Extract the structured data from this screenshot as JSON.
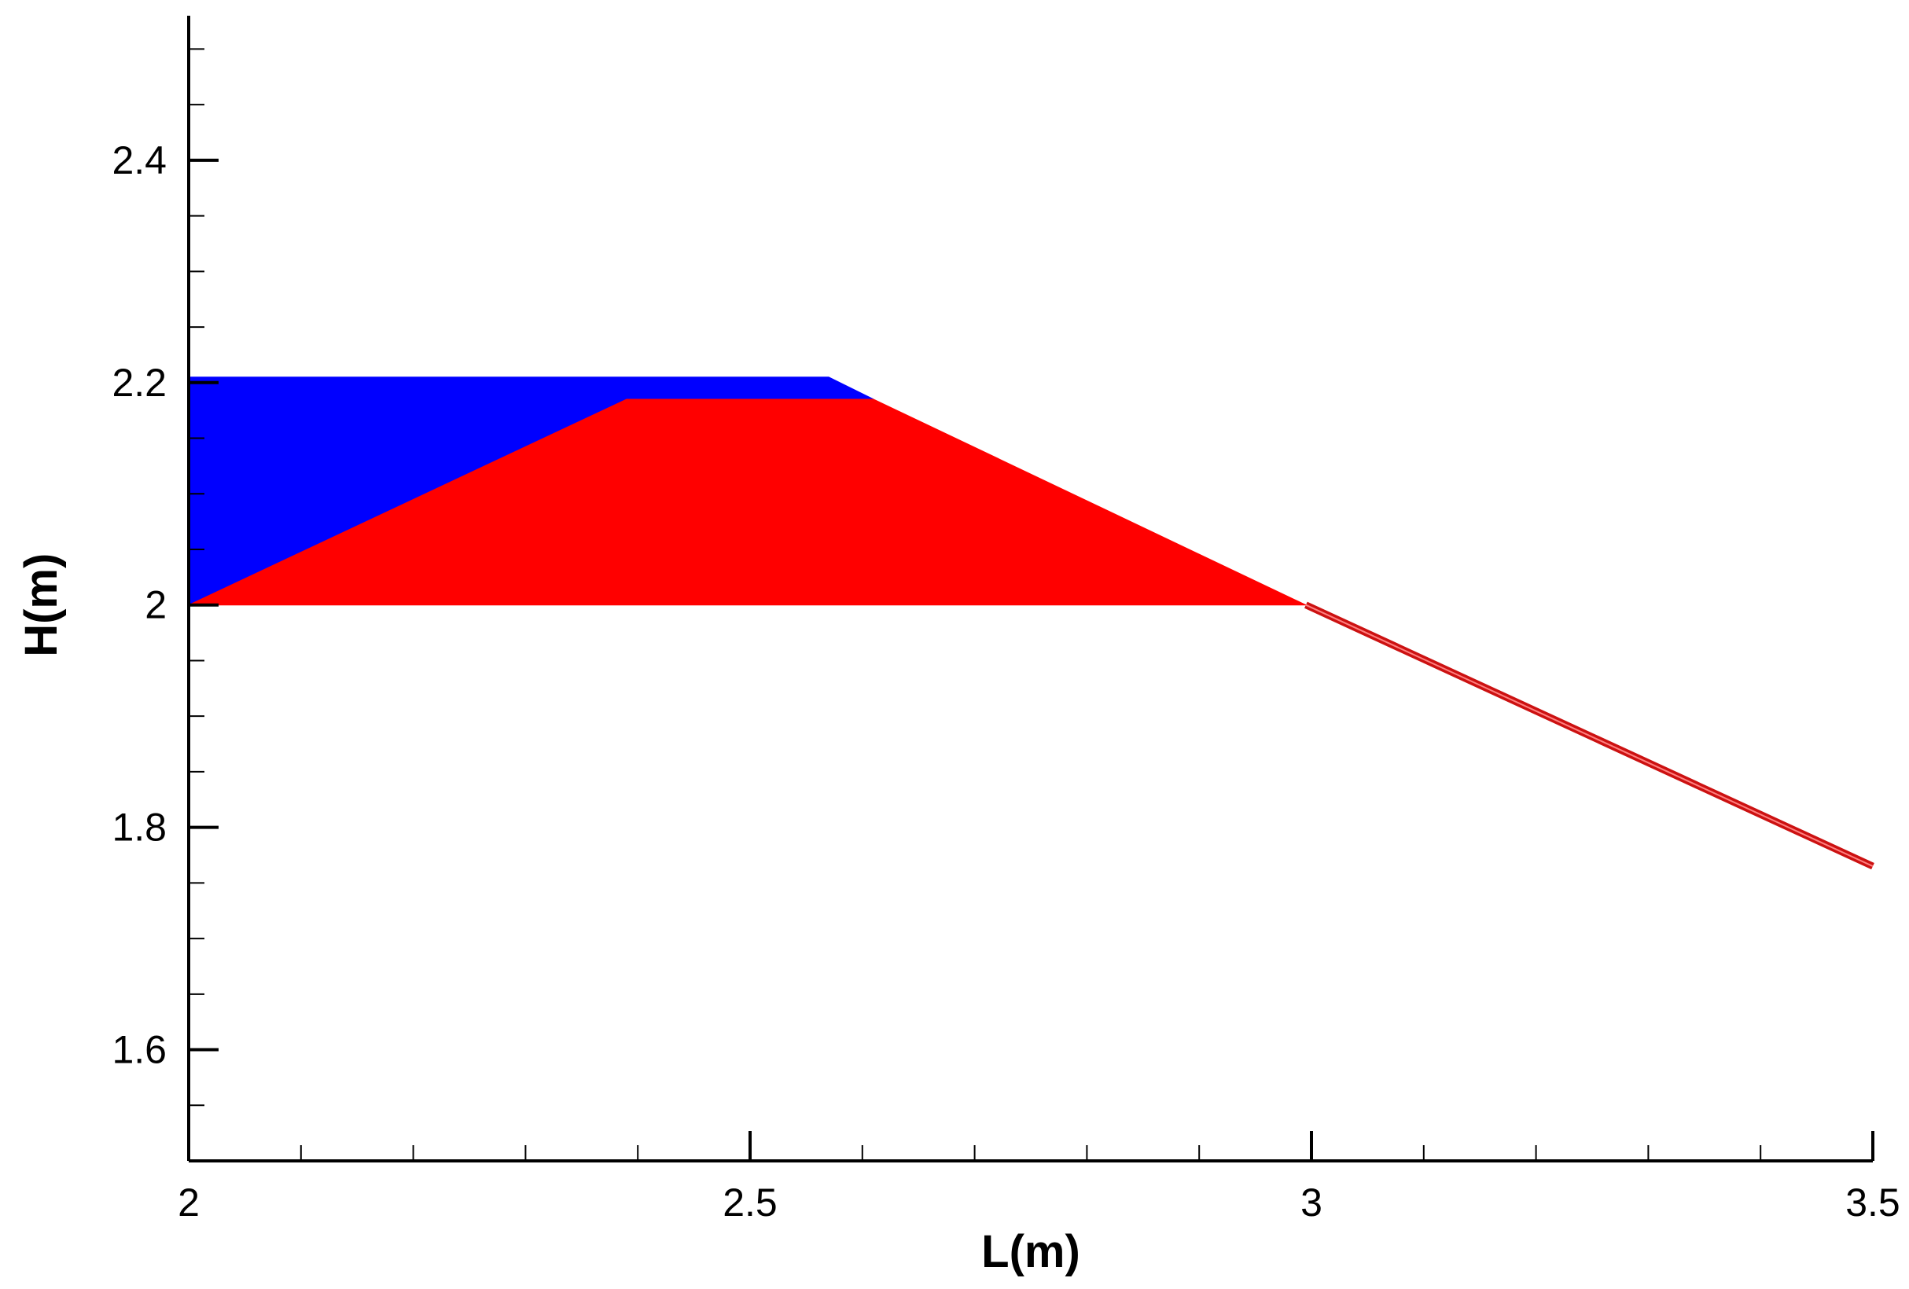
{
  "chart_data": {
    "type": "area",
    "title": "",
    "xlabel": "L(m)",
    "ylabel": "H(m)",
    "xlim": [
      2,
      3.5
    ],
    "ylim": [
      1.5,
      2.53
    ],
    "grid": false,
    "x_ticks": [
      {
        "value": 2,
        "label": "2"
      },
      {
        "value": 2.5,
        "label": "2.5"
      },
      {
        "value": 3,
        "label": "3"
      },
      {
        "value": 3.5,
        "label": "3.5"
      }
    ],
    "y_ticks": [
      {
        "value": 1.6,
        "label": "1.6"
      },
      {
        "value": 1.8,
        "label": "1.8"
      },
      {
        "value": 2,
        "label": "2"
      },
      {
        "value": 2.2,
        "label": "2.2"
      },
      {
        "value": 2.4,
        "label": "2.4"
      }
    ],
    "x_minor_step": 0.1,
    "y_minor_step": 0.05,
    "series": [
      {
        "color": "#0000ff",
        "kind": "area",
        "points": [
          [
            2.0,
            2.0
          ],
          [
            2.0,
            2.205
          ],
          [
            2.57,
            2.205
          ],
          [
            2.61,
            2.185
          ],
          [
            2.39,
            2.185
          ]
        ]
      },
      {
        "color": "#ff0000",
        "kind": "area",
        "points": [
          [
            2.0,
            2.0
          ],
          [
            2.39,
            2.185
          ],
          [
            2.61,
            2.185
          ],
          [
            2.995,
            2.0
          ]
        ]
      },
      {
        "color": "#cc1111",
        "kind": "line",
        "points": [
          [
            2.995,
            2.0
          ],
          [
            3.5,
            1.765
          ]
        ]
      }
    ]
  }
}
